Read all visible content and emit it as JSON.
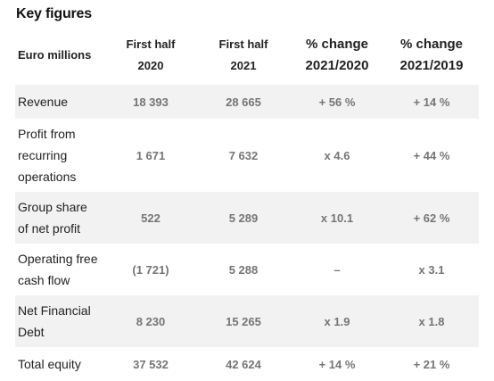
{
  "title": "Key figures",
  "headers": {
    "label": "Euro millions",
    "first_half_2020": [
      "First half",
      "2020"
    ],
    "first_half_2021": [
      "First half",
      "2021"
    ],
    "change_2021_2020": [
      "% change",
      "2021/2020"
    ],
    "change_2021_2019": [
      "% change",
      "2021/2019"
    ]
  },
  "rows": [
    {
      "label": "Revenue",
      "h1_2020": "18 393",
      "h1_2021": "28 665",
      "change_2021_2020": "+ 56 %",
      "change_2021_2019": "+ 14 %"
    },
    {
      "label": "Profit from recurring operations",
      "h1_2020": "1 671",
      "h1_2021": "7 632",
      "change_2021_2020": "x 4.6",
      "change_2021_2019": "+ 44 %"
    },
    {
      "label": "Group share of net profit",
      "h1_2020": "522",
      "h1_2021": "5 289",
      "change_2021_2020": "x 10.1",
      "change_2021_2019": "+ 62 %"
    },
    {
      "label": "Operating free cash flow",
      "h1_2020": "(1 721)",
      "h1_2021": "5 288",
      "change_2021_2020": "–",
      "change_2021_2019": "x 3.1"
    },
    {
      "label": "Net Financial Debt",
      "h1_2020": "8 230",
      "h1_2021": "15 265",
      "change_2021_2020": "x 1.9",
      "change_2021_2019": "x 1.8"
    },
    {
      "label": "Total equity",
      "h1_2020": "37 532",
      "h1_2021": "42 624",
      "change_2021_2020": "+ 14 %",
      "change_2021_2019": "+ 21 %"
    }
  ],
  "colors": {
    "shaded_row": "#f2f2f2",
    "value_text": "#757575",
    "label_text": "#222222"
  }
}
